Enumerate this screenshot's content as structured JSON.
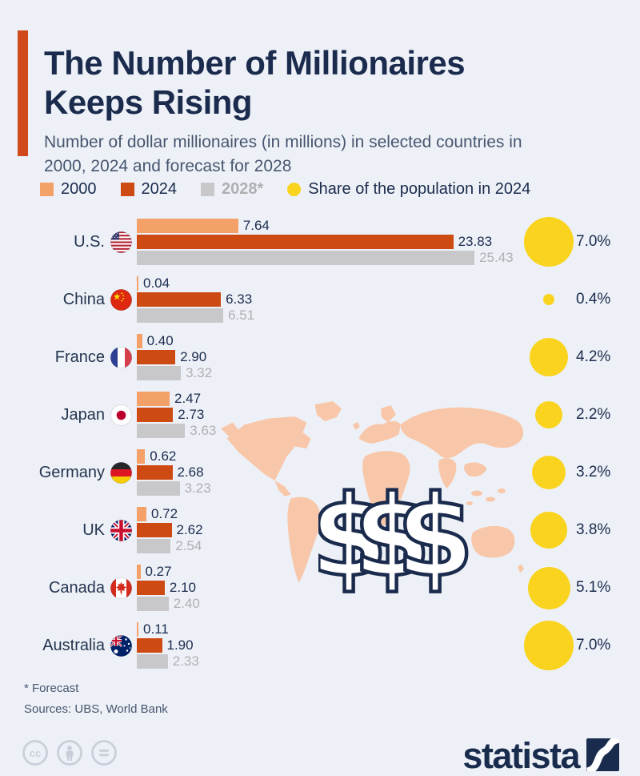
{
  "header": {
    "title": "The Number of Millionaires Keeps Rising",
    "subtitle": "Number of dollar millionaires (in millions) in selected countries in 2000, 2024 and forecast for 2028"
  },
  "legend": {
    "items": [
      {
        "label": "2000",
        "swatch": "square",
        "color": "#F4A069"
      },
      {
        "label": "2024",
        "swatch": "square",
        "color": "#CD4A12"
      },
      {
        "label": "2028*",
        "swatch": "square",
        "color": "#C8C8CA",
        "label_color": "#AFAFB2"
      },
      {
        "label": "Share of the population in 2024",
        "swatch": "circle",
        "color": "#F9D31E"
      }
    ]
  },
  "chart_data": {
    "type": "bar",
    "orientation": "horizontal",
    "title": "The Number of Millionaires Keeps Rising",
    "subtitle": "Number of dollar millionaires (in millions) in selected countries in 2000, 2024 and forecast for 2028",
    "unit": "millions of dollar millionaires",
    "categories": [
      "U.S.",
      "China",
      "France",
      "Japan",
      "Germany",
      "UK",
      "Canada",
      "Australia"
    ],
    "series": [
      {
        "name": "2000",
        "color": "#F4A069",
        "values": [
          7.64,
          0.04,
          0.4,
          2.47,
          0.62,
          0.72,
          0.27,
          0.11
        ]
      },
      {
        "name": "2024",
        "color": "#CD4A12",
        "values": [
          23.83,
          6.33,
          2.9,
          2.73,
          2.68,
          2.62,
          2.1,
          1.9
        ]
      },
      {
        "name": "2028*",
        "color": "#C8C8CA",
        "values": [
          25.43,
          6.51,
          3.32,
          3.63,
          3.23,
          2.54,
          2.4,
          2.33
        ]
      }
    ],
    "bubble_series": {
      "name": "Share of the population in 2024",
      "unit": "%",
      "color": "#F9D31E",
      "values": [
        7.0,
        0.4,
        4.2,
        2.2,
        3.2,
        3.8,
        5.1,
        7.0
      ]
    },
    "value_labels": true,
    "xlim": [
      0,
      25.43
    ],
    "grid": false,
    "legend_position": "top"
  },
  "rows": [
    {
      "key": "us",
      "country": "U.S.",
      "v2000": "7.64",
      "v2024": "23.83",
      "v2028": "25.43",
      "share": "7.0%"
    },
    {
      "key": "cn",
      "country": "China",
      "v2000": "0.04",
      "v2024": "6.33",
      "v2028": "6.51",
      "share": "0.4%"
    },
    {
      "key": "fr",
      "country": "France",
      "v2000": "0.40",
      "v2024": "2.90",
      "v2028": "3.32",
      "share": "4.2%"
    },
    {
      "key": "jp",
      "country": "Japan",
      "v2000": "2.47",
      "v2024": "2.73",
      "v2028": "3.63",
      "share": "2.2%"
    },
    {
      "key": "de",
      "country": "Germany",
      "v2000": "0.62",
      "v2024": "2.68",
      "v2028": "3.23",
      "share": "3.2%"
    },
    {
      "key": "uk",
      "country": "UK",
      "v2000": "0.72",
      "v2024": "2.62",
      "v2028": "2.54",
      "share": "3.8%"
    },
    {
      "key": "ca",
      "country": "Canada",
      "v2000": "0.27",
      "v2024": "2.10",
      "v2028": "2.40",
      "share": "5.1%"
    },
    {
      "key": "au",
      "country": "Australia",
      "v2000": "0.11",
      "v2024": "1.90",
      "v2028": "2.33",
      "share": "7.0%"
    }
  ],
  "decoration": {
    "dollar_signs": "$$$"
  },
  "footer": {
    "forecast_note": "* Forecast",
    "sources": "Sources: UBS, World Bank"
  },
  "branding": {
    "logo_text": "statista"
  },
  "colors": {
    "background": "#EDF1F7",
    "navy": "#1B2B4D",
    "subtext": "#47566F",
    "accent": "#D0481B",
    "bar_2000": "#F4A069",
    "bar_2024": "#CD4A12",
    "bar_2028": "#C8C8CA",
    "gray_label": "#AFAFB2",
    "bubble_yellow": "#F9D31E",
    "map_salmon": "#F8C7AA",
    "cc_gray": "#C9CFDA"
  }
}
